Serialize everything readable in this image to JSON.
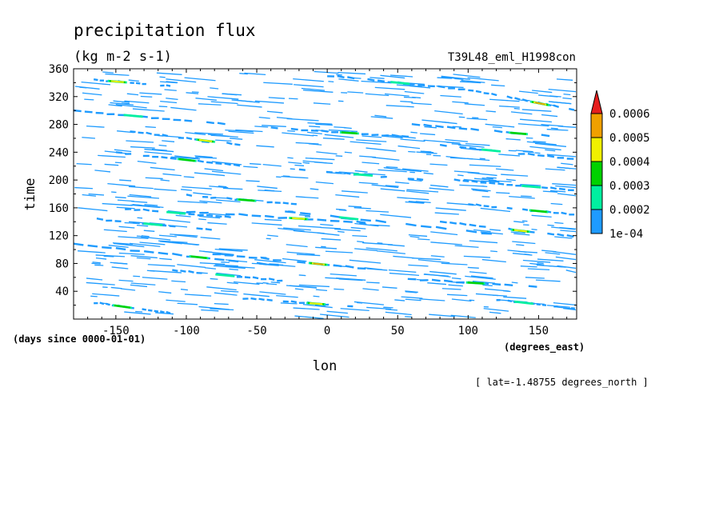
{
  "chart_data": {
    "type": "heatmap",
    "title": "precipitation flux",
    "units": "(kg m-2 s-1)",
    "run_name": "T39L48_eml_H1998con",
    "xlabel": "lon",
    "x_units": "(degrees_east)",
    "ylabel": "time",
    "y_units": "(days since 0000-01-01)",
    "footnote": "[ lat=-1.48755 degrees_north ]",
    "xlim": [
      -180,
      177
    ],
    "ylim": [
      0,
      360
    ],
    "x_ticks": [
      -150,
      -100,
      -50,
      0,
      50,
      100,
      150
    ],
    "x_tick_labels": [
      "-150",
      "-100",
      "-50",
      "0",
      "50",
      "100",
      "150"
    ],
    "y_ticks": [
      40,
      80,
      120,
      160,
      200,
      240,
      280,
      320,
      360
    ],
    "y_tick_labels": [
      "40",
      "80",
      "120",
      "160",
      "200",
      "240",
      "280",
      "320",
      "360"
    ],
    "colorbar": {
      "levels": [
        0.0001,
        0.0002,
        0.0003,
        0.0004,
        0.0005,
        0.0006
      ],
      "labels": [
        "1e-04",
        "0.0002",
        "0.0003",
        "0.0004",
        "0.0005",
        "0.0006"
      ],
      "colors": [
        "#1e9bff",
        "#00f0a0",
        "#00d200",
        "#f0f000",
        "#f0a000",
        "#e61e1e"
      ],
      "extend": "max"
    },
    "bands": [
      {
        "lon0": -180,
        "t0": 108,
        "lon1": -40,
        "t1": 78,
        "level": 2
      },
      {
        "lon0": -90,
        "t0": 96,
        "lon1": 30,
        "t1": 72,
        "level": 4
      },
      {
        "lon0": -170,
        "t0": 25,
        "lon1": -110,
        "t1": 8,
        "level": 2
      },
      {
        "lon0": -60,
        "t0": 30,
        "lon1": 20,
        "t1": 18,
        "level": 3
      },
      {
        "lon0": -150,
        "t0": 160,
        "lon1": -60,
        "t1": 145,
        "level": 1
      },
      {
        "lon0": -100,
        "t0": 178,
        "lon1": -20,
        "t1": 165,
        "level": 2
      },
      {
        "lon0": -100,
        "t0": 155,
        "lon1": 30,
        "t1": 138,
        "level": 3
      },
      {
        "lon0": -170,
        "t0": 145,
        "lon1": -80,
        "t1": 128,
        "level": 1
      },
      {
        "lon0": -30,
        "t0": 155,
        "lon1": 120,
        "t1": 122,
        "level": 1
      },
      {
        "lon0": 80,
        "t0": 140,
        "lon1": 177,
        "t1": 118,
        "level": 3
      },
      {
        "lon0": 100,
        "t0": 165,
        "lon1": 177,
        "t1": 150,
        "level": 2
      },
      {
        "lon0": -150,
        "t0": 240,
        "lon1": -60,
        "t1": 220,
        "level": 2
      },
      {
        "lon0": -140,
        "t0": 270,
        "lon1": -60,
        "t1": 250,
        "level": 3
      },
      {
        "lon0": -40,
        "t0": 275,
        "lon1": 60,
        "t1": 262,
        "level": 2
      },
      {
        "lon0": -180,
        "t0": 300,
        "lon1": -70,
        "t1": 280,
        "level": 1
      },
      {
        "lon0": -170,
        "t0": 345,
        "lon1": -110,
        "t1": 335,
        "level": 3
      },
      {
        "lon0": 100,
        "t0": 330,
        "lon1": 177,
        "t1": 300,
        "level": 4
      },
      {
        "lon0": 60,
        "t0": 280,
        "lon1": 177,
        "t1": 260,
        "level": 2
      },
      {
        "lon0": 80,
        "t0": 250,
        "lon1": 177,
        "t1": 230,
        "level": 1
      },
      {
        "lon0": 0,
        "t0": 350,
        "lon1": 100,
        "t1": 330,
        "level": 1
      },
      {
        "lon0": 40,
        "t0": 60,
        "lon1": 160,
        "t1": 45,
        "level": 2
      },
      {
        "lon0": 120,
        "t0": 28,
        "lon1": 177,
        "t1": 15,
        "level": 1
      },
      {
        "lon0": -110,
        "t0": 70,
        "lon1": -30,
        "t1": 55,
        "level": 1
      },
      {
        "lon0": 90,
        "t0": 200,
        "lon1": 177,
        "t1": 185,
        "level": 1
      },
      {
        "lon0": -20,
        "t0": 215,
        "lon1": 70,
        "t1": 200,
        "level": 1
      }
    ]
  }
}
